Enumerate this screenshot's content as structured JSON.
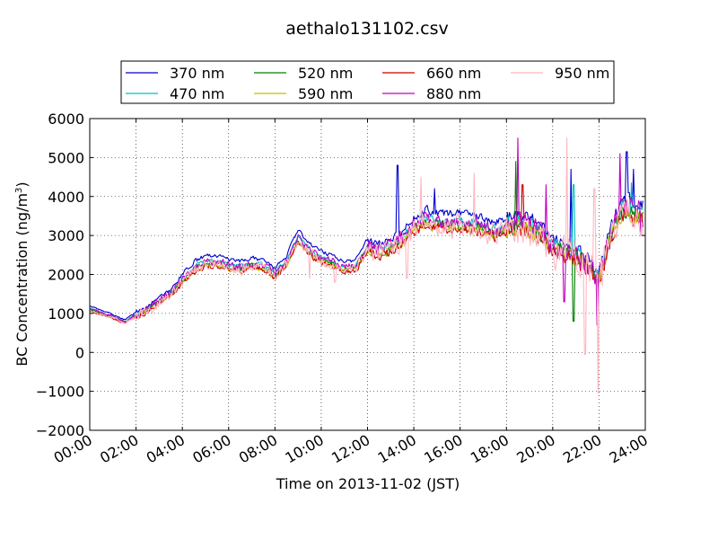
{
  "chart_data": {
    "type": "line",
    "title": "aethalo131102.csv",
    "xlabel": "Time on 2013-11-02 (JST)",
    "ylabel": "BC Concentration (ng/m",
    "ylabel_sup": "3",
    "ylabel_end": ")",
    "xlim": [
      0,
      24
    ],
    "ylim": [
      -2000,
      6000
    ],
    "grid": true,
    "legend_position": "top",
    "x_ticks": [
      0,
      2,
      4,
      6,
      8,
      10,
      12,
      14,
      16,
      18,
      20,
      22,
      24
    ],
    "x_tick_labels": [
      "00:00",
      "02:00",
      "04:00",
      "06:00",
      "08:00",
      "10:00",
      "12:00",
      "14:00",
      "16:00",
      "18:00",
      "20:00",
      "22:00",
      "24:00"
    ],
    "y_ticks": [
      -2000,
      -1000,
      0,
      1000,
      2000,
      3000,
      4000,
      5000,
      6000
    ],
    "y_tick_labels": [
      "−2000",
      "−1000",
      "0",
      "1000",
      "2000",
      "3000",
      "4000",
      "5000",
      "6000"
    ],
    "base_profile": {
      "x": [
        0,
        0.5,
        1.0,
        1.5,
        2.0,
        2.5,
        3.0,
        3.5,
        4.0,
        4.5,
        5.0,
        5.5,
        6.0,
        6.5,
        7.0,
        7.5,
        8.0,
        8.5,
        9.0,
        9.5,
        10.0,
        10.5,
        11.0,
        11.5,
        12.0,
        12.5,
        13.0,
        13.5,
        14.0,
        14.5,
        15.0,
        15.5,
        16.0,
        16.5,
        17.0,
        17.5,
        18.0,
        18.5,
        19.0,
        19.5,
        20.0,
        20.5,
        21.0,
        21.5,
        22.0,
        22.5,
        23.0,
        23.5,
        23.9
      ],
      "y": [
        1100,
        1000,
        900,
        780,
        950,
        1100,
        1300,
        1500,
        1850,
        2150,
        2300,
        2300,
        2200,
        2150,
        2250,
        2200,
        2000,
        2300,
        2900,
        2600,
        2400,
        2300,
        2150,
        2200,
        2700,
        2600,
        2700,
        2900,
        3200,
        3400,
        3300,
        3300,
        3300,
        3250,
        3200,
        3100,
        3200,
        3300,
        3200,
        3100,
        2700,
        2600,
        2500,
        2200,
        1900,
        3000,
        3700,
        3600,
        3500
      ]
    },
    "series": [
      {
        "name": "370 nm",
        "color": "#0000cc",
        "scale": 1.08,
        "seed": 3,
        "noise": 0.1,
        "spikes": [
          [
            13.3,
            4800
          ],
          [
            14.9,
            4200
          ],
          [
            23.2,
            5150
          ],
          [
            23.5,
            4700
          ],
          [
            20.8,
            4700
          ]
        ]
      },
      {
        "name": "470 nm",
        "color": "#00bfbf",
        "scale": 1.02,
        "seed": 7,
        "noise": 0.11,
        "spikes": [
          [
            23.4,
            4350
          ],
          [
            20.9,
            4300
          ]
        ]
      },
      {
        "name": "520 nm",
        "color": "#007f00",
        "scale": 0.99,
        "seed": 11,
        "noise": 0.12,
        "spikes": [
          [
            20.9,
            800
          ],
          [
            18.4,
            4900
          ]
        ]
      },
      {
        "name": "590 nm",
        "color": "#bfbf00",
        "scale": 0.97,
        "seed": 13,
        "noise": 0.12,
        "spikes": []
      },
      {
        "name": "660 nm",
        "color": "#cc0000",
        "scale": 0.96,
        "seed": 17,
        "noise": 0.14,
        "spikes": [
          [
            18.7,
            4300
          ]
        ]
      },
      {
        "name": "880 nm",
        "color": "#bf00bf",
        "scale": 1.02,
        "seed": 19,
        "noise": 0.17,
        "spikes": [
          [
            18.5,
            5500
          ],
          [
            19.7,
            4300
          ],
          [
            20.5,
            1300
          ],
          [
            21.9,
            700
          ],
          [
            22.9,
            5100
          ],
          [
            23.8,
            3000
          ]
        ]
      },
      {
        "name": "950 nm",
        "color": "#ffb6c1",
        "scale": 0.98,
        "seed": 23,
        "noise": 0.26,
        "spikes": [
          [
            20.6,
            5500
          ],
          [
            21.4,
            -50
          ],
          [
            21.8,
            4200
          ],
          [
            21.95,
            -1050
          ],
          [
            22.1,
            2500
          ],
          [
            13.7,
            1900
          ],
          [
            16.6,
            4600
          ],
          [
            10.6,
            1800
          ],
          [
            9.5,
            1900
          ],
          [
            14.3,
            4500
          ]
        ]
      }
    ],
    "legend_columns": 4
  }
}
